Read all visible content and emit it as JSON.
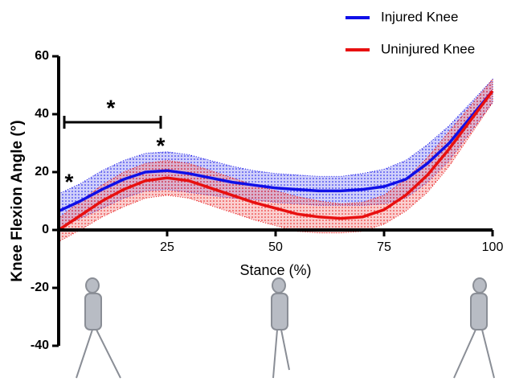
{
  "chart_data": {
    "type": "line",
    "x_label": "Stance (%)",
    "y_label": "Knee Flexion Angle (°)",
    "x": [
      0,
      5,
      10,
      15,
      20,
      25,
      30,
      35,
      40,
      45,
      50,
      55,
      60,
      65,
      70,
      75,
      80,
      85,
      90,
      95,
      100
    ],
    "series": [
      {
        "name": "Injured Knee",
        "color": "#1010e8",
        "values": [
          6.5,
          10,
          14,
          17.5,
          20,
          20.5,
          19.5,
          18,
          16.5,
          15.5,
          14.5,
          14,
          13.5,
          13.5,
          14,
          15,
          17.5,
          23,
          30,
          39,
          48
        ],
        "sd": [
          6,
          6,
          6.5,
          6.5,
          6.5,
          6.5,
          6.5,
          6,
          5.5,
          5,
          5,
          5,
          5,
          5,
          5.5,
          6,
          6.5,
          6.5,
          6,
          5,
          4
        ]
      },
      {
        "name": "Uninjured Knee",
        "color": "#e81010",
        "values": [
          0,
          5,
          10,
          14,
          17,
          18,
          17,
          14.5,
          12,
          9.5,
          7.5,
          5.5,
          4.5,
          4,
          4.5,
          7,
          12,
          19,
          28,
          38,
          48
        ],
        "sd": [
          4,
          5,
          5.5,
          6,
          6,
          6,
          6,
          6,
          6,
          6,
          6,
          6,
          5.5,
          5,
          5,
          5,
          5.5,
          6,
          6,
          5,
          4
        ]
      }
    ],
    "annotations": [
      {
        "text": "*"
      },
      {
        "text": "*"
      },
      {
        "text": "*"
      }
    ],
    "xlim": [
      0,
      100
    ],
    "xticks": [
      25,
      50,
      75,
      100
    ],
    "ylim": [
      -40,
      60
    ],
    "yticks": [
      -40,
      -20,
      0,
      20,
      40,
      60
    ],
    "legend": "top-right"
  }
}
